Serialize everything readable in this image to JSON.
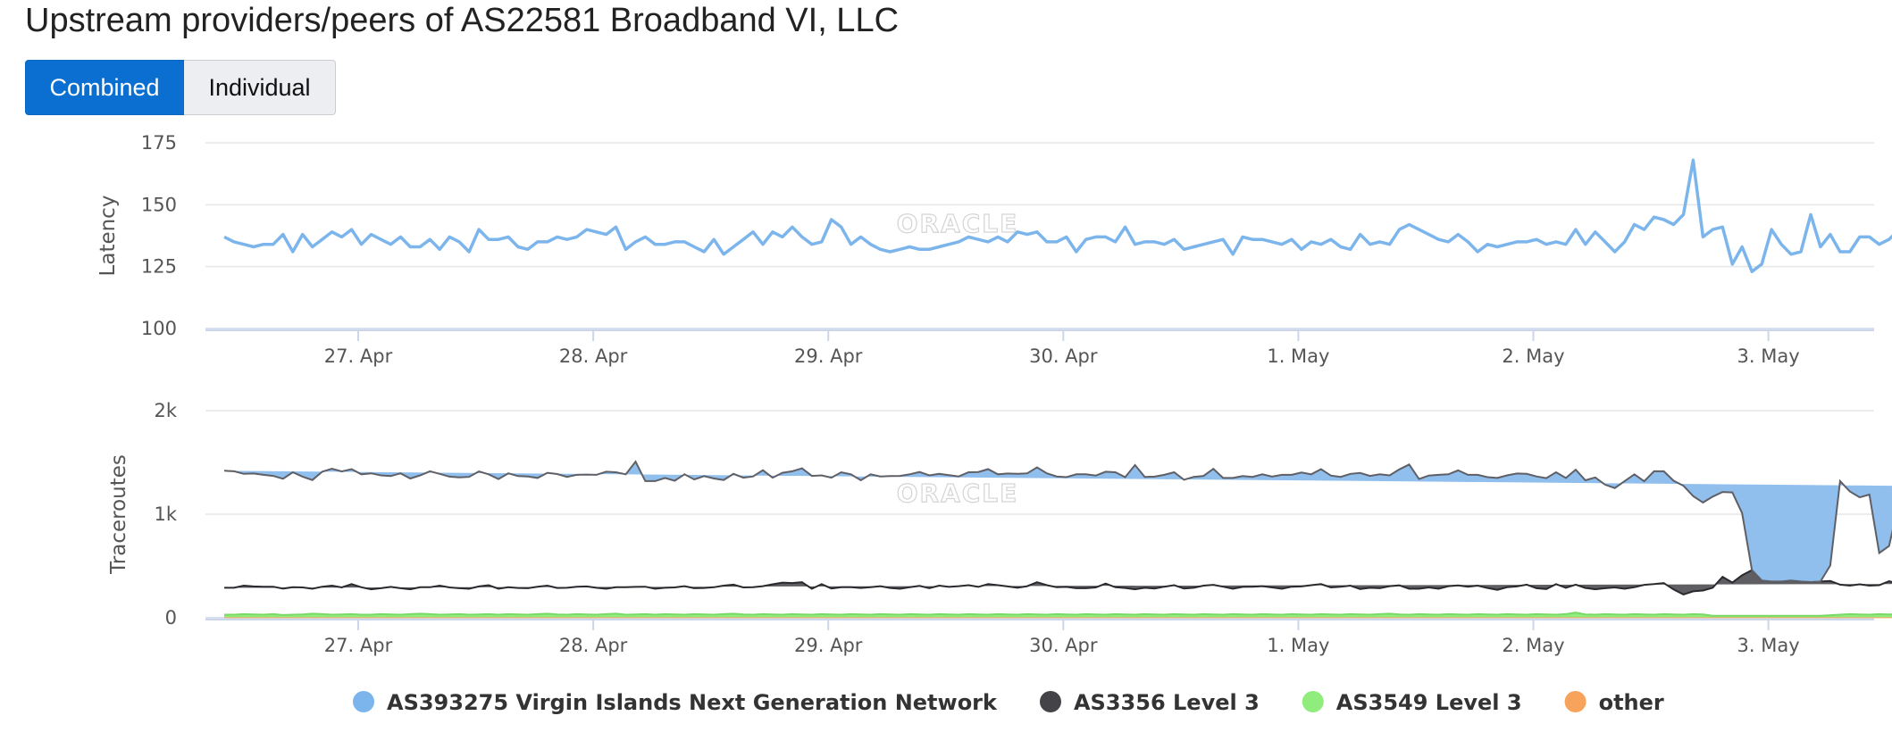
{
  "title": "Upstream providers/peers of AS22581 Broadband VI, LLC",
  "view_toggle": {
    "combined_label": "Combined",
    "individual_label": "Individual",
    "active": "combined"
  },
  "watermark": "ORACLE",
  "colors": {
    "latency_line": "#7cb5ec",
    "virgin_islands": "#90bfee",
    "level3_3356": "#434348",
    "level3_3549": "#90ed7d",
    "other": "#f7a35c",
    "grid": "#e6e6e6"
  },
  "chart_data": [
    {
      "type": "line",
      "ylabel": "Latency",
      "ylim": [
        100,
        175
      ],
      "yticks": [
        "100",
        "125",
        "150",
        "175"
      ],
      "xticks": [
        "27. Apr",
        "28. Apr",
        "29. Apr",
        "30. Apr",
        "1. May",
        "2. May",
        "3. May"
      ],
      "x_range_days": [
        26.35,
        33.45
      ],
      "x_start_day": 26.43,
      "x_step_hours": 1,
      "series": [
        {
          "name": "Latency",
          "values": [
            137,
            135,
            134,
            133,
            134,
            134,
            138,
            131,
            138,
            133,
            136,
            139,
            137,
            140,
            134,
            138,
            136,
            134,
            137,
            133,
            133,
            136,
            132,
            137,
            135,
            131,
            140,
            136,
            136,
            137,
            133,
            132,
            135,
            135,
            137,
            136,
            137,
            140,
            139,
            138,
            141,
            132,
            135,
            137,
            134,
            134,
            135,
            135,
            133,
            131,
            136,
            130,
            133,
            136,
            139,
            134,
            139,
            137,
            141,
            137,
            134,
            135,
            144,
            141,
            134,
            137,
            134,
            132,
            131,
            132,
            133,
            132,
            132,
            133,
            134,
            135,
            137,
            136,
            135,
            137,
            135,
            139,
            138,
            139,
            135,
            135,
            137,
            131,
            136,
            137,
            137,
            135,
            141,
            134,
            135,
            135,
            134,
            136,
            132,
            133,
            134,
            135,
            136,
            130,
            137,
            136,
            136,
            135,
            134,
            136,
            132,
            135,
            134,
            136,
            133,
            132,
            138,
            134,
            135,
            134,
            140,
            142,
            140,
            138,
            136,
            135,
            138,
            135,
            131,
            134,
            133,
            134,
            135,
            135,
            136,
            134,
            135,
            134,
            140,
            134,
            139,
            135,
            131,
            135,
            142,
            140,
            145,
            144,
            142,
            146,
            168,
            137,
            140,
            141,
            126,
            133,
            123,
            126,
            140,
            134,
            130,
            131,
            146,
            133,
            138,
            131,
            131,
            137,
            137,
            134,
            136,
            140,
            134,
            139,
            137,
            132,
            129,
            134,
            130,
            136,
            135,
            134
          ]
        }
      ]
    },
    {
      "type": "area",
      "stacked": true,
      "ylabel": "Traceroutes",
      "ylim": [
        0,
        2000
      ],
      "yticks": [
        "0",
        "1k",
        "2k"
      ],
      "xticks": [
        "27. Apr",
        "28. Apr",
        "29. Apr",
        "30. Apr",
        "1. May",
        "2. May",
        "3. May"
      ],
      "x_range_days": [
        26.35,
        33.45
      ],
      "x_start_day": 26.43,
      "x_step_hours": 1,
      "series": [
        {
          "name": "AS393275 Virgin Islands Next Generation Network",
          "values": [
            1130,
            1125,
            1080,
            1090,
            1080,
            1070,
            1060,
            1110,
            1070,
            1050,
            1110,
            1130,
            1120,
            1110,
            1090,
            1120,
            1090,
            1070,
            1110,
            1070,
            1080,
            1120,
            1080,
            1070,
            1070,
            1080,
            1110,
            1070,
            1060,
            1100,
            1080,
            1080,
            1050,
            1090,
            1100,
            1070,
            1080,
            1080,
            1090,
            1130,
            1110,
            1090,
            1210,
            1020,
            1040,
            1060,
            1030,
            1080,
            1050,
            1080,
            1050,
            1020,
            1070,
            1060,
            1070,
            1120,
            1030,
            1060,
            1080,
            1100,
            1090,
            1050,
            1070,
            1110,
            1090,
            1040,
            1090,
            1060,
            1080,
            1090,
            1090,
            1100,
            1090,
            1080,
            1080,
            1060,
            1090,
            1110,
            1110,
            1070,
            1090,
            1100,
            1090,
            1110,
            1080,
            1070,
            1060,
            1100,
            1100,
            1080,
            1080,
            1110,
            1070,
            1200,
            1070,
            1080,
            1080,
            1090,
            1050,
            1070,
            1060,
            1120,
            1050,
            1070,
            1070,
            1060,
            1080,
            1070,
            1100,
            1080,
            1100,
            1070,
            1110,
            1080,
            1060,
            1080,
            1120,
            1080,
            1100,
            1070,
            1120,
            1200,
            1060,
            1080,
            1100,
            1080,
            1110,
            1080,
            1070,
            1070,
            1080,
            1080,
            1090,
            1070,
            1080,
            1070,
            1080,
            1060,
            1110,
            1040,
            1080,
            1000,
            960,
            1040,
            1090,
            1000,
            1090,
            1080,
            1050,
            1050,
            920,
            850,
            880,
            820,
            870,
            600,
            0,
            0,
            0,
            0,
            0,
            0,
            0,
            0,
            150,
            1000,
            910,
            840,
            880,
            310,
            340,
            770,
            950,
            910,
            940,
            960,
            950,
            960,
            920,
            990,
            950,
            960,
            960,
            930,
            970,
            910,
            960,
            930,
            970
          ]
        },
        {
          "name": "AS3356 Level 3",
          "values": [
            260,
            260,
            275,
            270,
            270,
            265,
            255,
            265,
            260,
            240,
            265,
            280,
            260,
            290,
            265,
            245,
            250,
            265,
            255,
            240,
            255,
            260,
            280,
            260,
            250,
            250,
            270,
            280,
            250,
            260,
            255,
            255,
            265,
            270,
            255,
            260,
            265,
            270,
            260,
            245,
            255,
            265,
            265,
            265,
            250,
            255,
            260,
            275,
            250,
            255,
            265,
            275,
            280,
            260,
            265,
            270,
            290,
            310,
            300,
            310,
            250,
            290,
            250,
            265,
            260,
            255,
            265,
            270,
            255,
            250,
            260,
            275,
            255,
            275,
            265,
            275,
            280,
            265,
            295,
            280,
            270,
            260,
            270,
            310,
            285,
            260,
            265,
            255,
            250,
            260,
            300,
            260,
            255,
            245,
            255,
            250,
            270,
            280,
            250,
            260,
            275,
            285,
            270,
            245,
            265,
            270,
            270,
            260,
            250,
            265,
            270,
            285,
            290,
            260,
            270,
            275,
            245,
            260,
            250,
            265,
            280,
            250,
            245,
            260,
            250,
            270,
            280,
            270,
            275,
            255,
            240,
            260,
            270,
            290,
            250,
            245,
            295,
            255,
            270,
            255,
            245,
            250,
            260,
            250,
            260,
            285,
            295,
            300,
            240,
            195,
            220,
            230,
            270,
            375,
            320,
            390,
            440,
            340,
            330,
            330,
            340,
            330,
            325,
            330,
            330,
            290,
            275,
            290,
            280,
            280,
            320,
            300,
            310,
            305,
            285,
            320,
            275,
            265,
            290,
            270,
            285,
            295,
            250,
            270,
            280,
            260,
            290,
            300
          ]
        },
        {
          "name": "AS3549 Level 3",
          "values": [
            25,
            25,
            30,
            28,
            25,
            30,
            22,
            25,
            28,
            35,
            30,
            25,
            28,
            30,
            25,
            25,
            30,
            28,
            25,
            30,
            35,
            30,
            25,
            28,
            30,
            25,
            28,
            30,
            25,
            30,
            28,
            25,
            30,
            35,
            28,
            25,
            30,
            28,
            25,
            30,
            35,
            25,
            28,
            30,
            25,
            30,
            28,
            25,
            30,
            28,
            25,
            30,
            35,
            28,
            25,
            30,
            28,
            25,
            30,
            28,
            25,
            30,
            28,
            25,
            30,
            28,
            25,
            30,
            28,
            25,
            30,
            28,
            25,
            30,
            28,
            25,
            30,
            28,
            25,
            30,
            28,
            25,
            30,
            28,
            25,
            30,
            28,
            25,
            30,
            28,
            25,
            30,
            28,
            25,
            30,
            28,
            25,
            30,
            28,
            25,
            30,
            28,
            25,
            30,
            28,
            25,
            30,
            28,
            25,
            30,
            28,
            25,
            30,
            28,
            25,
            30,
            28,
            25,
            30,
            35,
            28,
            25,
            30,
            28,
            25,
            30,
            28,
            25,
            30,
            28,
            25,
            30,
            28,
            25,
            30,
            28,
            25,
            30,
            45,
            28,
            25,
            30,
            28,
            25,
            30,
            28,
            25,
            30,
            28,
            25,
            30,
            28,
            15,
            15,
            15,
            15,
            15,
            15,
            15,
            15,
            15,
            15,
            15,
            15,
            20,
            25,
            30,
            28,
            25,
            30,
            28,
            25,
            30,
            55,
            28,
            25,
            30,
            28,
            25,
            30,
            28,
            25,
            30,
            28,
            25,
            30,
            28,
            25,
            30,
            28,
            25,
            30
          ]
        },
        {
          "name": "other",
          "values": [
            5,
            5,
            5,
            5,
            5,
            5,
            5,
            5,
            5,
            5,
            5,
            5,
            5,
            5,
            5,
            5,
            5,
            5,
            5,
            5,
            5,
            5,
            5,
            5,
            5,
            5,
            5,
            5,
            5,
            5,
            5,
            5,
            5,
            5,
            5,
            5,
            5,
            5,
            5,
            5,
            5,
            5,
            5,
            5,
            5,
            5,
            5,
            5,
            5,
            5,
            5,
            5,
            5,
            5,
            5,
            5,
            5,
            5,
            5,
            5,
            5,
            5,
            5,
            5,
            5,
            5,
            5,
            5,
            5,
            5,
            5,
            5,
            5,
            5,
            5,
            5,
            5,
            5,
            5,
            5,
            5,
            5,
            5,
            5,
            5,
            5,
            5,
            5,
            5,
            5,
            5,
            5,
            5,
            5,
            5,
            5,
            5,
            5,
            5,
            5,
            5,
            5,
            5,
            5,
            5,
            5,
            5,
            5,
            5,
            5,
            5,
            5,
            5,
            5,
            5,
            5,
            5,
            5,
            5,
            5,
            5,
            5,
            5,
            5,
            5,
            5,
            5,
            5,
            5,
            5,
            5,
            5,
            5,
            5,
            5,
            5,
            5,
            5,
            5,
            5,
            5,
            5,
            5,
            5,
            5,
            5,
            5,
            5,
            5,
            5,
            5,
            5,
            5,
            5,
            5,
            5,
            5,
            5,
            5,
            5,
            5,
            5,
            5,
            5,
            5,
            5,
            5,
            5,
            5,
            5,
            5,
            5,
            5,
            5,
            5,
            5,
            5,
            5,
            5,
            5,
            5,
            5,
            5,
            5,
            5,
            5,
            5,
            5,
            5,
            5
          ]
        }
      ]
    }
  ],
  "legend": [
    {
      "label": "AS393275 Virgin Islands Next Generation Network",
      "color": "#7cb5ec"
    },
    {
      "label": "AS3356 Level 3",
      "color": "#434348"
    },
    {
      "label": "AS3549 Level 3",
      "color": "#90ed7d"
    },
    {
      "label": "other",
      "color": "#f7a35c"
    }
  ]
}
